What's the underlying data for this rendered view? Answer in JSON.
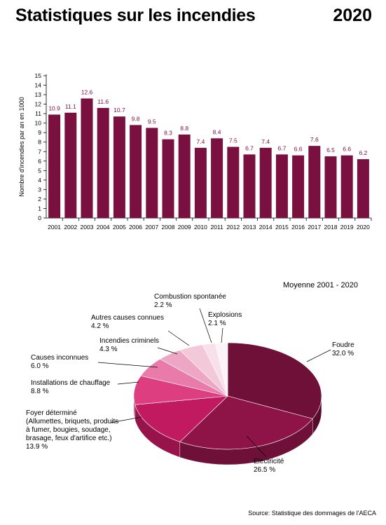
{
  "header": {
    "title": "Statistiques sur les incendies",
    "year": "2020"
  },
  "source": "Source: Statistique des dommages de l'AECA",
  "colors": {
    "bar": "#7a1040",
    "bar_label": "#7a1040"
  },
  "chart_data": [
    {
      "type": "bar",
      "title": "",
      "xlabel": "",
      "ylabel": "Nombre d'incendies par an en 1000",
      "ylim": [
        0,
        15
      ],
      "yticks": [
        0,
        1,
        2,
        3,
        4,
        5,
        6,
        7,
        8,
        9,
        10,
        11,
        12,
        13,
        14,
        15
      ],
      "grid": false,
      "categories": [
        "2001",
        "2002",
        "2003",
        "2004",
        "2005",
        "2006",
        "2007",
        "2008",
        "2009",
        "2010",
        "2011",
        "2012",
        "2013",
        "2014",
        "2015",
        "2016",
        "2017",
        "2018",
        "2019",
        "2020"
      ],
      "values": [
        10.9,
        11.1,
        12.6,
        11.6,
        10.7,
        9.8,
        9.5,
        8.3,
        8.8,
        7.4,
        8.4,
        7.5,
        6.7,
        7.4,
        6.7,
        6.6,
        7.6,
        6.5,
        6.6,
        6.2
      ],
      "data_labels": [
        "10.9",
        "11.1",
        "12.6",
        "11.6",
        "10.7",
        "9.8",
        "9.5",
        "8.3",
        "8.8",
        "7.4",
        "8.4",
        "7.5",
        "6.7",
        "7.4",
        "6.7",
        "6.6",
        "7.6",
        "6.5",
        "6.6",
        "6.2"
      ]
    },
    {
      "type": "pie",
      "title": "Moyenne 2001 - 2020",
      "slices": [
        {
          "name": "Foudre",
          "value": 32.0,
          "label": "32.0 %",
          "color": "#6e1038"
        },
        {
          "name": "Electricité",
          "value": 26.5,
          "label": "26.5 %",
          "color": "#8e1448"
        },
        {
          "name": "Foyer déterminé (Allumettes, briquets, produits à fumer, bougies, soudage, brasage, feux d'artifice etc.)",
          "value": 13.9,
          "label": "13.9 %",
          "color": "#c21a60",
          "name_lines": [
            "Foyer déterminé",
            "(Allumettes, briquets, produits",
            "à fumer, bougies, soudage,",
            "brasage, feux d'artifice etc.)"
          ]
        },
        {
          "name": "Installations de chauffage",
          "value": 8.8,
          "label": "8.8 %",
          "color": "#dc3e80"
        },
        {
          "name": "Causes inconnues",
          "value": 6.0,
          "label": "6.0 %",
          "color": "#e97bab"
        },
        {
          "name": "Incendies criminels",
          "value": 4.3,
          "label": "4.3 %",
          "color": "#eea6c5"
        },
        {
          "name": "Autres causes connues",
          "value": 4.2,
          "label": "4.2 %",
          "color": "#f3c9da"
        },
        {
          "name": "Combustion spontanée",
          "value": 2.2,
          "label": "2.2 %",
          "color": "#f8e0ea"
        },
        {
          "name": "Explosions",
          "value": 2.1,
          "label": "2.1 %",
          "color": "#fcf3f7"
        }
      ]
    }
  ]
}
